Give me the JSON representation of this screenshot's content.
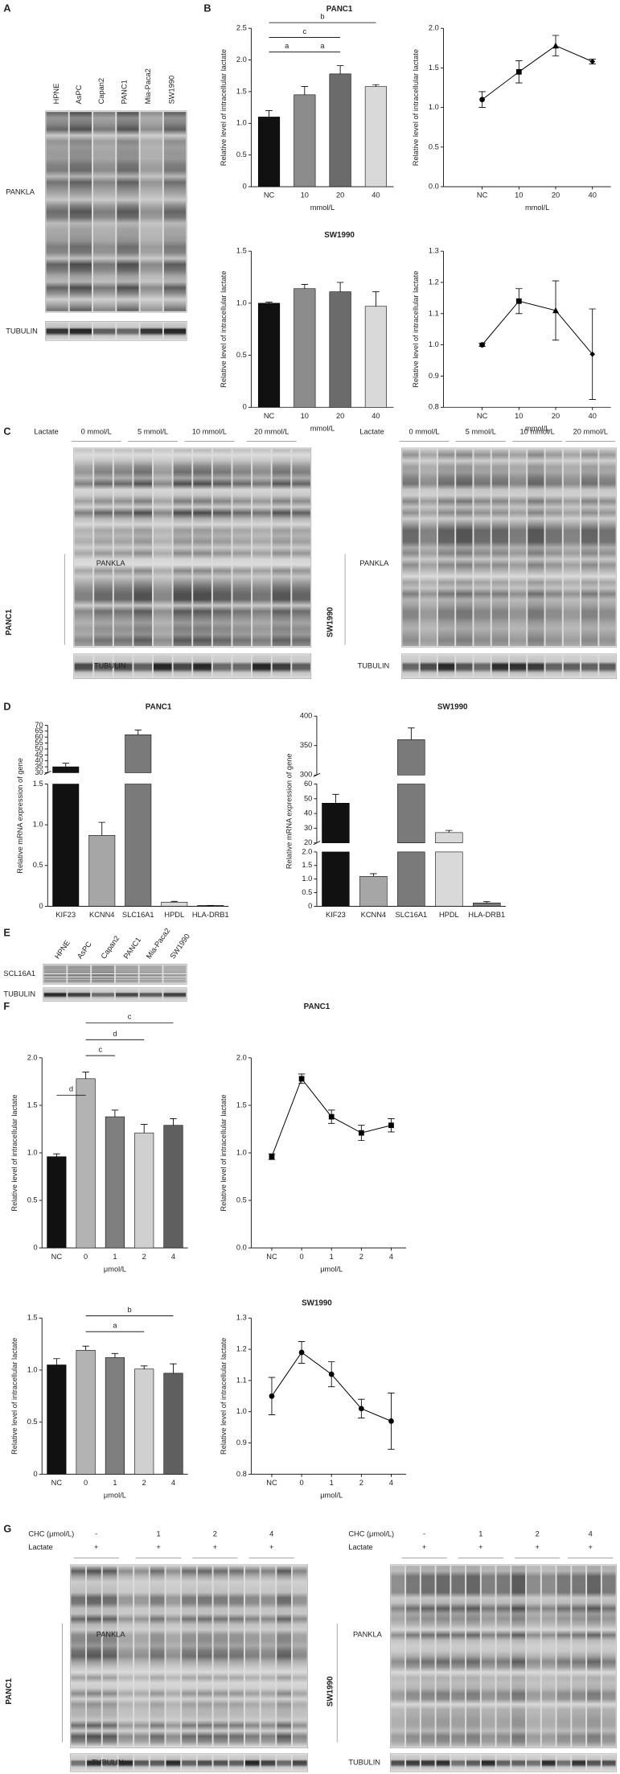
{
  "panels": [
    "A",
    "B",
    "C",
    "D",
    "E",
    "F",
    "G"
  ],
  "blot_a": {
    "lanes": [
      "HPNE",
      "AsPC",
      "Capan2",
      "PANC1",
      "Mia-Paca2",
      "SW1990"
    ],
    "target": "PANKLA",
    "loading": "TUBULIN"
  },
  "blot_c": [
    {
      "cell_line": "PANC1",
      "treatment": "Lactate",
      "groups": [
        "0 mmol/L",
        "5 mmol/L",
        "10 mmol/L",
        "20 mmol/L"
      ],
      "target": "PANKLA",
      "loading": "TUBULIN"
    },
    {
      "cell_line": "SW1990",
      "treatment": "Lactate",
      "groups": [
        "0 mmol/L",
        "5 mmol/L",
        "10 mmol/L",
        "20 mmol/L"
      ],
      "target": "PANKLA",
      "loading": "TUBULIN"
    }
  ],
  "blot_e": {
    "lanes": [
      "HPNE",
      "AsPC",
      "Capan2",
      "PANC1",
      "Mia-Paca2",
      "SW1990"
    ],
    "target": "SCL16A1",
    "loading": "TUBULIN"
  },
  "blot_g": [
    {
      "cell_line": "PANC1",
      "inhibitor": "CHC (μmol/L)",
      "doses": [
        "-",
        "1",
        "2",
        "4"
      ],
      "treatment": "Lactate",
      "treatment_signs": [
        "+",
        "+",
        "+",
        "+"
      ],
      "target": "PANKLA",
      "loading": "TUBULIN"
    },
    {
      "cell_line": "SW1990",
      "inhibitor": "CHC (μmol/L)",
      "doses": [
        "-",
        "1",
        "2",
        "4"
      ],
      "treatment": "Lactate",
      "treatment_signs": [
        "+",
        "+",
        "+",
        "+"
      ],
      "target": "PANKLA",
      "loading": "TUBULIN"
    }
  ],
  "chart_data": [
    {
      "type": "bar",
      "title": "PANC1",
      "ylabel": "Relative level of intracellular lactate",
      "xlabel": "mmol/L",
      "categories": [
        "NC",
        "10",
        "20",
        "40"
      ],
      "values": [
        1.1,
        1.45,
        1.78,
        1.58
      ],
      "errors": [
        0.1,
        0.13,
        0.13,
        0.03
      ],
      "colors": [
        "#111111",
        "#8c8c8c",
        "#6b6b6b",
        "#d9d9d9"
      ],
      "ylim": [
        0,
        2.5
      ],
      "yticks": [
        0,
        0.5,
        {
          "value": 1,
          "label": "1.0"
        },
        1.5,
        {
          "value": 2,
          "label": "2.0"
        },
        2.5
      ],
      "significance": [
        {
          "label": "a",
          "between": [
            "NC",
            "10"
          ]
        },
        {
          "label": "a",
          "between": [
            "10",
            "20"
          ]
        },
        {
          "label": "c",
          "between": [
            "NC",
            "20"
          ]
        },
        {
          "label": "b",
          "between": [
            "NC",
            "40"
          ]
        }
      ]
    },
    {
      "type": "line",
      "ylabel": "Relative level of intracellular lactate",
      "xlabel": "mmol/L",
      "categories": [
        "NC",
        "10",
        "20",
        "40"
      ],
      "values": [
        1.1,
        1.45,
        1.78,
        1.58
      ],
      "errors": [
        0.1,
        0.14,
        0.13,
        0.03
      ],
      "color": "#000000",
      "markers": [
        "circle",
        "square",
        "triangle",
        "diamond"
      ],
      "ylim": [
        0,
        2
      ],
      "yticks": [
        {
          "value": 0,
          "label": "0.0"
        },
        0.5,
        {
          "value": 1,
          "label": "1.0"
        },
        1.5,
        {
          "value": 2,
          "label": "2.0"
        }
      ]
    },
    {
      "type": "bar",
      "title": "SW1990",
      "ylabel": "Relative level of intracellular lactate",
      "xlabel": "mmol/L",
      "categories": [
        "NC",
        "10",
        "20",
        "40"
      ],
      "values": [
        1.0,
        1.14,
        1.11,
        0.97
      ],
      "errors": [
        0.01,
        0.04,
        0.09,
        0.14
      ],
      "colors": [
        "#111111",
        "#8c8c8c",
        "#6b6b6b",
        "#d9d9d9"
      ],
      "ylim": [
        0,
        1.5
      ],
      "yticks": [
        0,
        0.5,
        {
          "value": 1,
          "label": "1.0"
        },
        1.5
      ]
    },
    {
      "type": "line",
      "ylabel": "Relative level of intracellular lactate",
      "xlabel": "mmol/L",
      "categories": [
        "NC",
        "10",
        "20",
        "40"
      ],
      "values": [
        1.0,
        1.14,
        1.11,
        0.97
      ],
      "errors": [
        0.005,
        0.04,
        0.095,
        0.145
      ],
      "color": "#000000",
      "markers": [
        "circle",
        "square",
        "triangle",
        "diamond"
      ],
      "ylim": [
        0.8,
        1.3
      ],
      "yticks": [
        0.8,
        0.9,
        {
          "value": 1,
          "label": "1.0"
        },
        1.1,
        1.2,
        1.3
      ]
    },
    {
      "type": "bar",
      "title": "PANC1",
      "ylabel": "Relative mRNA expression of gene",
      "categories": [
        "KIF23",
        "KCNN4",
        "SLC16A1",
        "HPDL",
        "HLA-DRB1"
      ],
      "values": [
        35,
        0.87,
        62,
        0.05,
        0.01
      ],
      "errors": [
        3,
        0.16,
        4,
        0.01,
        0
      ],
      "colors": [
        "#111111",
        "#a6a6a6",
        "#7a7a7a",
        "#d9d9d9",
        "#7a7a7a"
      ],
      "ylim_segments": [
        [
          0,
          1.5
        ],
        [
          30,
          70
        ]
      ],
      "yticks": [
        0,
        0.5,
        {
          "value": 1,
          "label": "1.0"
        },
        1.5,
        30,
        35,
        40,
        45,
        50,
        55,
        60,
        65,
        70
      ]
    },
    {
      "type": "bar",
      "title": "SW1990",
      "ylabel": "Relative mRNA expression of gene",
      "categories": [
        "KIF23",
        "KCNN4",
        "SLC16A1",
        "HPDL",
        "HLA-DRB1"
      ],
      "values": [
        47,
        1.1,
        360,
        27,
        0.12
      ],
      "errors": [
        6,
        0.1,
        20,
        1.5,
        0.05
      ],
      "colors": [
        "#111111",
        "#a6a6a6",
        "#7a7a7a",
        "#d9d9d9",
        "#7a7a7a"
      ],
      "ylim_segments": [
        [
          0,
          2
        ],
        [
          20,
          60
        ],
        [
          300,
          400
        ]
      ],
      "yticks": [
        0,
        0.5,
        {
          "value": 1,
          "label": "1.0"
        },
        1.5,
        {
          "value": 2,
          "label": "2.0"
        },
        20,
        30,
        40,
        50,
        60,
        300,
        350,
        400
      ]
    },
    {
      "type": "bar",
      "title": "PANC1",
      "ylabel": "Relative level of intracellular lactate",
      "xlabel": "μmol/L",
      "categories": [
        "NC",
        "0",
        "1",
        "2",
        "4"
      ],
      "values": [
        0.96,
        1.78,
        1.38,
        1.21,
        1.29
      ],
      "errors": [
        0.03,
        0.07,
        0.07,
        0.09,
        0.07
      ],
      "colors": [
        "#111111",
        "#b3b3b3",
        "#7f7f7f",
        "#d0d0d0",
        "#5f5f5f"
      ],
      "ylim": [
        0,
        2
      ],
      "yticks": [
        0,
        0.5,
        {
          "value": 1,
          "label": "1.0"
        },
        1.5,
        {
          "value": 2,
          "label": "2.0"
        }
      ],
      "significance": [
        {
          "label": "d",
          "between": [
            "NC",
            "0"
          ]
        },
        {
          "label": "c",
          "between": [
            "0",
            "1"
          ]
        },
        {
          "label": "d",
          "between": [
            "0",
            "2"
          ]
        },
        {
          "label": "c",
          "between": [
            "0",
            "4"
          ]
        }
      ]
    },
    {
      "type": "line",
      "ylabel": "Relative level of intracellular lactate",
      "xlabel": "μmol/L",
      "categories": [
        "NC",
        "0",
        "1",
        "2",
        "4"
      ],
      "values": [
        0.96,
        1.78,
        1.38,
        1.21,
        1.29
      ],
      "errors": [
        0.03,
        0.05,
        0.07,
        0.08,
        0.07
      ],
      "color": "#000000",
      "markers": [
        "square",
        "square",
        "square",
        "square",
        "square"
      ],
      "ylim": [
        0,
        2
      ],
      "yticks": [
        {
          "value": 0,
          "label": "0.0"
        },
        0.5,
        {
          "value": 1,
          "label": "1.0"
        },
        1.5,
        {
          "value": 2,
          "label": "2.0"
        }
      ]
    },
    {
      "type": "bar",
      "title": "SW1990",
      "ylabel": "Relative level of intracellular lactate",
      "xlabel": "μmol/L",
      "categories": [
        "NC",
        "0",
        "1",
        "2",
        "4"
      ],
      "values": [
        1.05,
        1.19,
        1.12,
        1.01,
        0.97
      ],
      "errors": [
        0.06,
        0.04,
        0.04,
        0.03,
        0.09
      ],
      "colors": [
        "#111111",
        "#b3b3b3",
        "#7f7f7f",
        "#d0d0d0",
        "#5f5f5f"
      ],
      "ylim": [
        0,
        1.5
      ],
      "yticks": [
        0,
        0.5,
        {
          "value": 1,
          "label": "1.0"
        },
        1.5
      ],
      "significance": [
        {
          "label": "a",
          "between": [
            "0",
            "2"
          ]
        },
        {
          "label": "b",
          "between": [
            "0",
            "4"
          ]
        }
      ]
    },
    {
      "type": "line",
      "ylabel": "Relative level of intracellular lactate",
      "xlabel": "μmol/L",
      "categories": [
        "NC",
        "0",
        "1",
        "2",
        "4"
      ],
      "values": [
        1.05,
        1.19,
        1.12,
        1.01,
        0.97
      ],
      "errors": [
        0.06,
        0.035,
        0.04,
        0.03,
        0.09
      ],
      "color": "#000000",
      "markers": [
        "circle",
        "circle",
        "circle",
        "circle",
        "circle"
      ],
      "ylim": [
        0.8,
        1.3
      ],
      "yticks": [
        0.8,
        0.9,
        {
          "value": 1,
          "label": "1.0"
        },
        1.1,
        1.2,
        1.3
      ]
    }
  ]
}
